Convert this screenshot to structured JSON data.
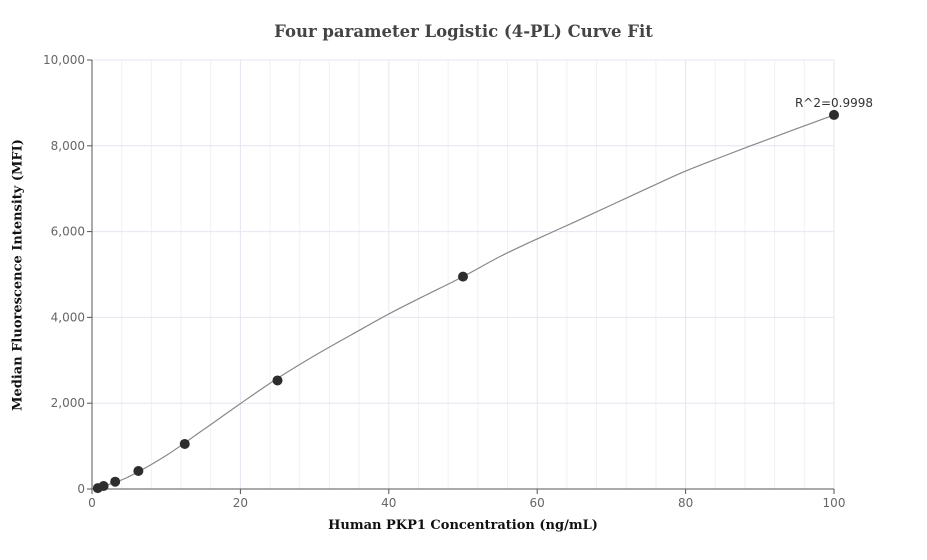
{
  "chart_data": {
    "type": "scatter",
    "title": "Four parameter Logistic (4-PL) Curve Fit",
    "xlabel": "Human PKP1 Concentration (ng/mL)",
    "ylabel": "Median Fluorescence Intensity (MFI)",
    "xlim": [
      0,
      100
    ],
    "ylim": [
      0,
      10000
    ],
    "x_ticks": [
      0,
      20,
      40,
      60,
      80,
      100
    ],
    "x_tick_labels": [
      "0",
      "20",
      "40",
      "60",
      "80",
      "100"
    ],
    "y_ticks": [
      0,
      2000,
      4000,
      6000,
      8000,
      10000
    ],
    "y_tick_labels": [
      "0",
      "2,000",
      "4,000",
      "6,000",
      "8,000",
      "10,000"
    ],
    "x_minor_step": 4,
    "grid": true,
    "series": [
      {
        "x": [
          0.78,
          1.56,
          3.125,
          6.25,
          12.5,
          25,
          50,
          100
        ],
        "y": [
          20,
          70,
          170,
          420,
          1050,
          2530,
          4950,
          8720
        ]
      }
    ],
    "fit_curve": {
      "x": [
        0,
        2,
        5,
        10,
        15,
        20,
        25,
        30,
        35,
        40,
        45,
        50,
        55,
        60,
        65,
        70,
        75,
        80,
        85,
        90,
        95,
        100
      ],
      "y": [
        -10,
        90,
        290,
        780,
        1380,
        1990,
        2580,
        3110,
        3600,
        4080,
        4520,
        4950,
        5420,
        5830,
        6220,
        6620,
        7020,
        7410,
        7750,
        8080,
        8400,
        8720
      ]
    },
    "annotation": {
      "text": "R^2=0.9998",
      "x": 100,
      "y": 8720
    },
    "colors": {
      "points": "#2d2d2d",
      "curve": "#888888",
      "grid": "#e6e6f0",
      "minor_grid": "#f1f1f6",
      "axis": "#555555",
      "tick_text": "#666666"
    }
  }
}
